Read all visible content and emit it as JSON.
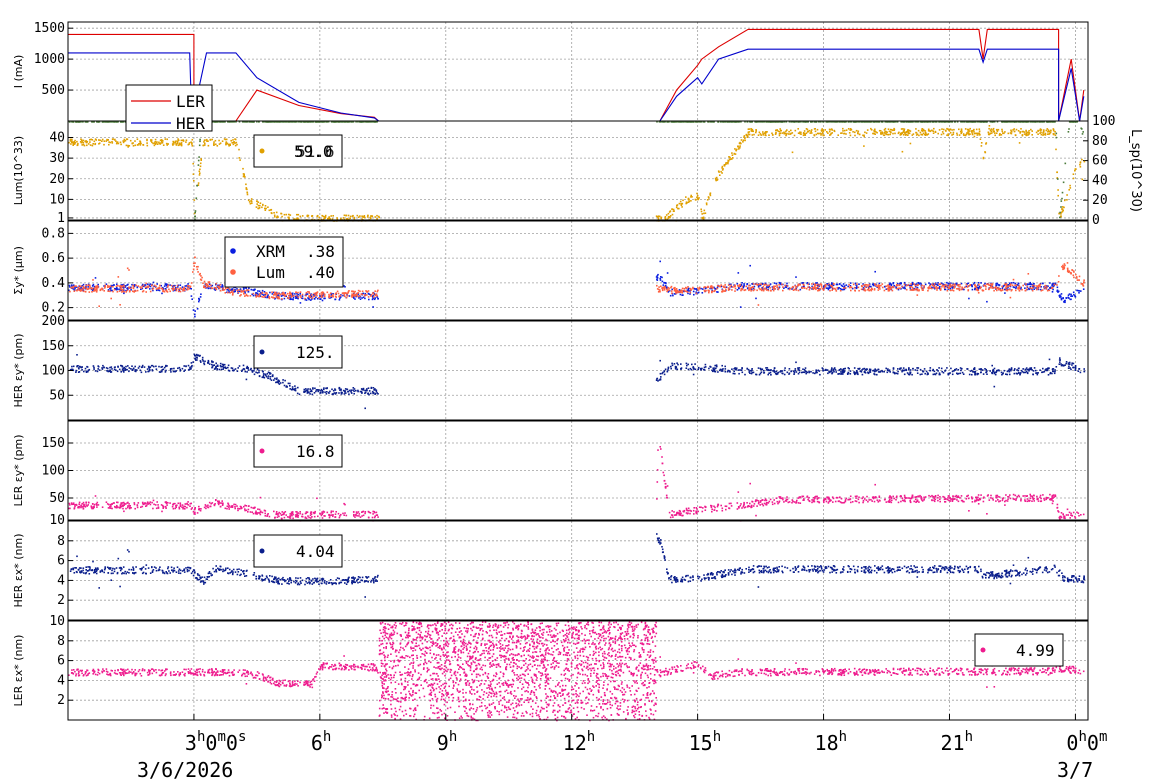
{
  "chart_data": [
    {
      "type": "line",
      "ylabel": "I (mA)",
      "yticks": [
        "500",
        "1000",
        "1500"
      ],
      "ylim": [
        0,
        1600
      ],
      "legend": {
        "entries": [
          {
            "name": "LER",
            "color": "#dd0000"
          },
          {
            "name": "HER",
            "color": "#0000cc"
          }
        ]
      },
      "series": [
        {
          "name": "LER",
          "color": "#dd0000",
          "x": [
            0,
            3.0,
            3.0,
            4.0,
            4.5,
            5.5,
            6.5,
            7.3,
            7.4,
            14.1,
            14.5,
            15.0,
            15.1,
            15.5,
            16.2,
            21.7,
            21.8,
            21.9,
            23.6,
            23.6,
            23.9,
            24.1,
            24.2
          ],
          "y": [
            1400,
            1400,
            0,
            0,
            500,
            250,
            120,
            60,
            0,
            0,
            500,
            900,
            1000,
            1200,
            1480,
            1480,
            1000,
            1480,
            1480,
            0,
            1000,
            0,
            500
          ]
        },
        {
          "name": "HER",
          "color": "#0000cc",
          "x": [
            0,
            2.9,
            2.95,
            3.3,
            4.0,
            4.5,
            5.5,
            6.5,
            7.3,
            7.4,
            14.1,
            14.5,
            15.0,
            15.1,
            15.5,
            16.2,
            21.7,
            21.8,
            21.9,
            23.6,
            23.6,
            23.9,
            24.1,
            24.2
          ],
          "y": [
            1100,
            1100,
            0,
            1100,
            1100,
            700,
            300,
            130,
            50,
            0,
            0,
            400,
            700,
            600,
            1000,
            1160,
            1160,
            950,
            1160,
            1160,
            0,
            850,
            0,
            400
          ]
        }
      ]
    },
    {
      "type": "scatter",
      "ylabel": "Lum(10^33)",
      "yticks": [
        "1",
        "10",
        "20",
        "30",
        "40"
      ],
      "ylim": [
        0,
        48
      ],
      "y2label": "L_sp(10^30)",
      "y2ticks": [
        "0",
        "20",
        "40",
        "60",
        "80",
        "100"
      ],
      "y2lim": [
        0,
        100
      ],
      "legend": {
        "text": "59.0",
        "overlay": "51.6",
        "color": "#e0a000"
      },
      "series": [
        {
          "name": "Lum",
          "color": "#e0a000",
          "x": [
            0,
            2.95,
            3.0,
            3.2,
            4.0,
            4.3,
            5.0,
            6.0,
            7.3,
            14.2,
            14.7,
            15.0,
            15.1,
            15.4,
            16.2,
            21.7,
            21.8,
            21.9,
            23.5,
            23.6,
            24.0,
            24.2
          ],
          "y": [
            38,
            38,
            1,
            38,
            38,
            10,
            2,
            1,
            1,
            1,
            10,
            12,
            1,
            20,
            43,
            43,
            30,
            43,
            43,
            1,
            25,
            30
          ]
        },
        {
          "name": "L_sp",
          "color": "#4a7a3a",
          "x": [
            0,
            2.95,
            3.0,
            3.2,
            4.0,
            4.5,
            5.0,
            5.5,
            6.0,
            6.5,
            7.0,
            7.3,
            14.2,
            14.4,
            15.0,
            15.2,
            15.5,
            16.2,
            21.7,
            21.8,
            21.9,
            23.5,
            23.6,
            23.9,
            24.2
          ],
          "y": [
            59,
            59,
            0,
            59,
            60,
            62,
            80,
            55,
            60,
            75,
            95,
            98,
            65,
            62,
            64,
            58,
            57,
            55,
            55,
            56,
            55,
            55,
            0,
            60,
            40
          ]
        }
      ]
    },
    {
      "type": "scatter",
      "ylabel": "Σy* (µm)",
      "yticks": [
        "0.2",
        "0.4",
        "0.6",
        "0.8"
      ],
      "ylim": [
        0.1,
        0.9
      ],
      "legend": {
        "entries": [
          {
            "name": "XRM",
            "value": ".38",
            "color": "#0a1ee0"
          },
          {
            "name": "Lum",
            "value": ".40",
            "color": "#ff6040"
          }
        ]
      },
      "series": [
        {
          "name": "XRM",
          "color": "#0a1ee0",
          "x": [
            0,
            2.9,
            3.0,
            3.2,
            4.0,
            5.0,
            6.0,
            7.3,
            14.1,
            14.3,
            15.0,
            16.0,
            23.5,
            23.7,
            24.2
          ],
          "y": [
            0.37,
            0.37,
            0.14,
            0.38,
            0.35,
            0.3,
            0.29,
            0.3,
            0.45,
            0.33,
            0.34,
            0.38,
            0.38,
            0.27,
            0.36
          ]
        },
        {
          "name": "Lum",
          "color": "#ff6040",
          "x": [
            0,
            2.9,
            3.0,
            3.2,
            4.0,
            5.0,
            6.0,
            7.3,
            14.1,
            14.3,
            15.0,
            16.0,
            23.5,
            23.7,
            24.2
          ],
          "y": [
            0.36,
            0.36,
            0.6,
            0.4,
            0.33,
            0.3,
            0.31,
            0.32,
            0.36,
            0.35,
            0.35,
            0.37,
            0.37,
            0.55,
            0.4
          ]
        }
      ]
    },
    {
      "type": "scatter",
      "ylabel": "HER εy* (pm)",
      "yticks": [
        "50",
        "100",
        "150",
        "200"
      ],
      "ylim": [
        0,
        200
      ],
      "legend": {
        "text": "125.",
        "color": "#0a1e8c"
      },
      "series": [
        {
          "name": "HER εy*",
          "color": "#0a1e8c",
          "x": [
            0,
            2.9,
            3.0,
            3.5,
            4.2,
            4.8,
            5.5,
            6.5,
            7.3,
            14.0,
            14.3,
            15.0,
            16.0,
            21.0,
            23.5,
            23.6,
            24.2
          ],
          "y": [
            105,
            105,
            130,
            110,
            105,
            90,
            60,
            60,
            60,
            80,
            110,
            110,
            100,
            100,
            100,
            120,
            100
          ]
        }
      ]
    },
    {
      "type": "scatter",
      "ylabel": "LER εy* (pm)",
      "yticks": [
        "10",
        "50",
        "100",
        "150"
      ],
      "ylim": [
        10,
        190
      ],
      "legend": {
        "text": "16.8",
        "color": "#ee1c8e"
      },
      "series": [
        {
          "name": "LER εy*",
          "color": "#ee1c8e",
          "x": [
            0,
            2.9,
            3.0,
            3.5,
            4.0,
            5.0,
            7.3,
            14.0,
            14.05,
            14.3,
            15.0,
            16.0,
            17.0,
            23.5,
            23.6,
            24.2
          ],
          "y": [
            38,
            38,
            28,
            42,
            35,
            20,
            22,
            25,
            170,
            22,
            30,
            38,
            48,
            52,
            20,
            22
          ]
        }
      ]
    },
    {
      "type": "scatter",
      "ylabel": "HER εx* (nm)",
      "yticks": [
        "2",
        "4",
        "6",
        "8"
      ],
      "ylim": [
        0,
        10
      ],
      "legend": {
        "text": "4.04",
        "color": "#0a1e8c"
      },
      "series": [
        {
          "name": "HER εx*",
          "color": "#0a1e8c",
          "x": [
            0,
            2.9,
            3.2,
            3.5,
            4.0,
            5.0,
            6.5,
            7.3,
            14.0,
            14.1,
            14.3,
            15.0,
            16.2,
            21.7,
            21.8,
            23.5,
            23.7,
            24.2
          ],
          "y": [
            5.1,
            5.1,
            4.0,
            5.2,
            5.0,
            4.0,
            4.0,
            4.2,
            8.5,
            8.0,
            4.2,
            4.3,
            5.2,
            5.2,
            4.5,
            5.3,
            4.3,
            4.2
          ]
        }
      ]
    },
    {
      "type": "scatter",
      "ylabel": "LER εx* (nm)",
      "yticks": [
        "2",
        "4",
        "6",
        "8",
        "10"
      ],
      "ylim": [
        0,
        10
      ],
      "legend": {
        "text": "4.99",
        "color": "#ee1c8e"
      },
      "series": [
        {
          "name": "LER εx*",
          "color": "#ee1c8e",
          "x": [
            0,
            4.0,
            4.5,
            5.0,
            5.8,
            6.0,
            7.3,
            7.4,
            14.0,
            14.1,
            15.0,
            15.3,
            16.0,
            23.4,
            23.6,
            24.2
          ],
          "y": [
            4.9,
            4.9,
            4.6,
            3.8,
            3.7,
            5.5,
            5.4,
            5.0,
            5.0,
            4.8,
            5.8,
            4.5,
            4.9,
            5.0,
            5.3,
            5.0
          ]
        }
      ]
    }
  ],
  "x_axis": {
    "range_hours": [
      0,
      24.3
    ],
    "ticks": [
      {
        "hour": 3,
        "label": "3",
        "sup": "h",
        "tail": "0",
        "tail_sup": "m",
        "tail2": "0",
        "tail2_sup": "s"
      },
      {
        "hour": 6,
        "label": "6",
        "sup": "h"
      },
      {
        "hour": 9,
        "label": "9",
        "sup": "h"
      },
      {
        "hour": 12,
        "label": "12",
        "sup": "h"
      },
      {
        "hour": 15,
        "label": "15",
        "sup": "h"
      },
      {
        "hour": 18,
        "label": "18",
        "sup": "h"
      },
      {
        "hour": 21,
        "label": "21",
        "sup": "h"
      },
      {
        "hour": 24,
        "label": "0",
        "sup": "h",
        "tail": "0",
        "tail_sup": "m"
      }
    ],
    "date_left": "3/6/2026",
    "date_right": "3/7"
  },
  "noise_region": {
    "x_start": 7.4,
    "x_end": 14.0,
    "ylim": [
      0,
      10
    ],
    "color": "#ee1c8e"
  },
  "legend_labels": {
    "ler": "LER",
    "her": "HER",
    "lum_main": "59.0",
    "lum_overlay": "51.6",
    "sigma_xrm": "XRM",
    "sigma_xrm_val": ".38",
    "sigma_lum": "Lum",
    "sigma_lum_val": ".40",
    "her_ey": "125.",
    "ler_ey": "16.8",
    "her_ex": "4.04",
    "ler_ex": "4.99"
  },
  "colors": {
    "ler_current": "#dd0000",
    "her_current": "#0000cc",
    "lum": "#e0a000",
    "lsp": "#4a7a3a",
    "xrm": "#0a1ee0",
    "sigma_lum": "#ff6040",
    "her_point": "#0a1e8c",
    "ler_point": "#ee1c8e",
    "grid": "#a0a0a0"
  }
}
